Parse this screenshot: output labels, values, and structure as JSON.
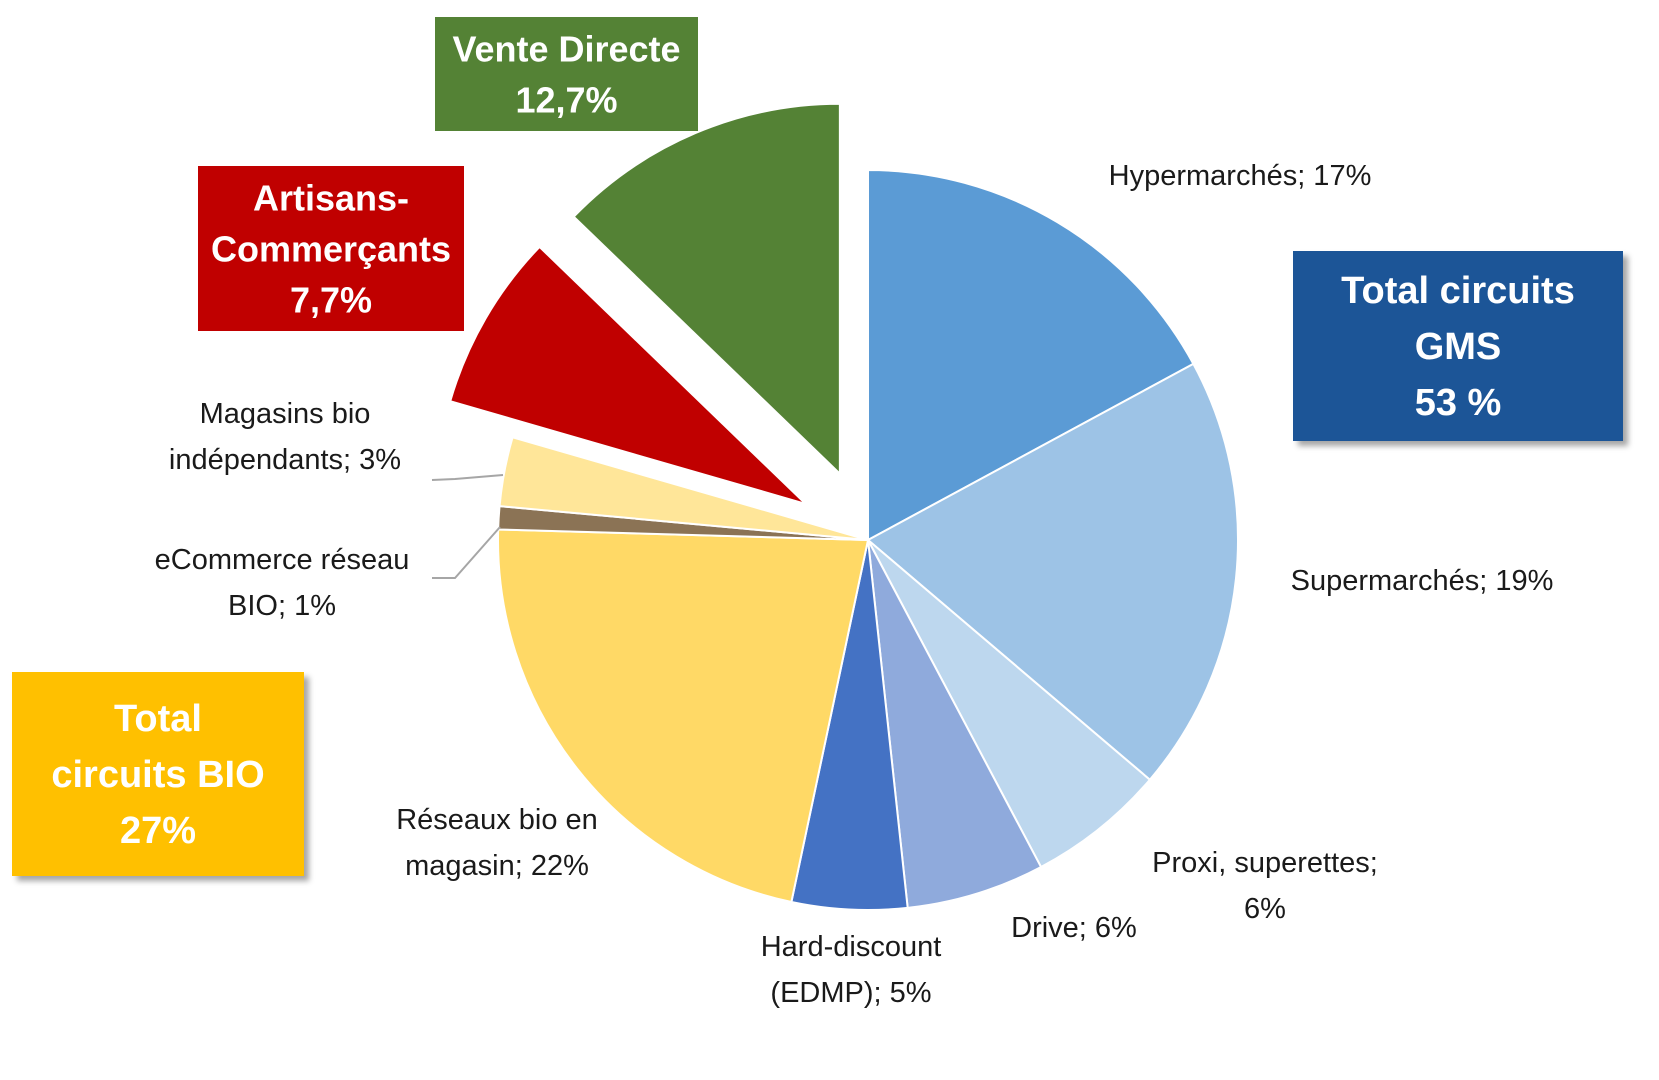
{
  "chart_data": {
    "type": "pie",
    "title": "",
    "slices": [
      {
        "name": "Hypermarchés",
        "value": 17,
        "label": [
          "Hypermarchés; 17%"
        ],
        "color": "#5b9bd5",
        "group": "GMS"
      },
      {
        "name": "Supermarchés",
        "value": 19,
        "label": [
          "Supermarchés; 19%"
        ],
        "color": "#9dc3e6",
        "group": "GMS"
      },
      {
        "name": "Proxi, superettes",
        "value": 6,
        "label": [
          "Proxi, superettes;",
          "6%"
        ],
        "color": "#bdd7ee",
        "group": "GMS"
      },
      {
        "name": "Drive",
        "value": 6,
        "label": [
          "Drive; 6%"
        ],
        "color": "#8faadc",
        "group": "GMS"
      },
      {
        "name": "Hard-discount (EDMP)",
        "value": 5,
        "label": [
          "Hard-discount",
          "(EDMP); 5%"
        ],
        "color": "#4472c4",
        "group": "GMS"
      },
      {
        "name": "Réseaux bio en magasin",
        "value": 22,
        "label": [
          "Réseaux bio en",
          "magasin; 22%"
        ],
        "color": "#ffd966",
        "group": "BIO"
      },
      {
        "name": "eCommerce réseau BIO",
        "value": 1,
        "label": [
          "eCommerce réseau",
          "BIO; 1%"
        ],
        "color": "#8b7355",
        "group": "BIO"
      },
      {
        "name": "Magasins bio indépendants",
        "value": 3,
        "label": [
          "Magasins bio",
          "indépendants; 3%"
        ],
        "color": "#ffe699",
        "group": "BIO"
      },
      {
        "name": "Artisans-Commerçants",
        "value": 7.7,
        "label": [
          "Artisans-",
          "Commerçants",
          "7,7%"
        ],
        "color": "#c00000",
        "exploded": true
      },
      {
        "name": "Vente Directe",
        "value": 12.7,
        "label": [
          "Vente Directe",
          "12,7%"
        ],
        "color": "#548235",
        "exploded": true
      }
    ],
    "totals": [
      {
        "name": "GMS",
        "lines": [
          "Total circuits",
          "GMS",
          "53 %"
        ],
        "color": "#1f5597"
      },
      {
        "name": "BIO",
        "lines": [
          "Total",
          "circuits BIO",
          "27%"
        ],
        "color": "#ffc000"
      }
    ],
    "legend": "none"
  }
}
